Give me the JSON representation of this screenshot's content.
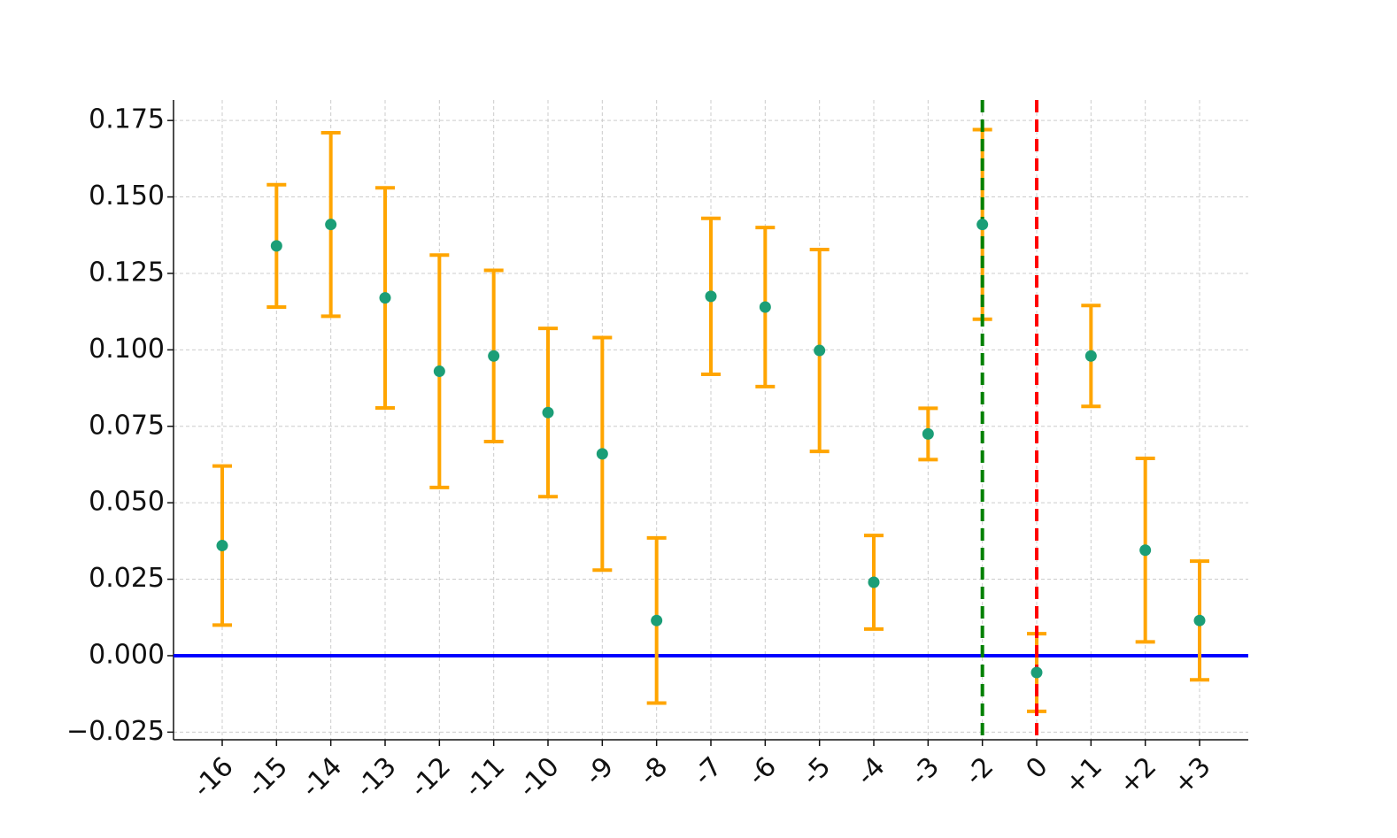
{
  "chart_data": {
    "type": "errorbar",
    "categories": [
      "-16",
      "-15",
      "-14",
      "-13",
      "-12",
      "-11",
      "-10",
      "-9",
      "-8",
      "-7",
      "-6",
      "-5",
      "-4",
      "-3",
      "-2",
      "0",
      "+1",
      "+2",
      "+3"
    ],
    "values": [
      0.036,
      0.134,
      0.141,
      0.117,
      0.093,
      0.098,
      0.0795,
      0.066,
      0.0115,
      0.1175,
      0.114,
      0.0998,
      0.024,
      0.0725,
      0.141,
      -0.0055,
      0.098,
      0.0345,
      0.0115
    ],
    "errors": [
      0.026,
      0.02,
      0.03,
      0.036,
      0.038,
      0.028,
      0.0275,
      0.038,
      0.027,
      0.0255,
      0.026,
      0.033,
      0.0153,
      0.0084,
      0.031,
      0.0127,
      0.0165,
      0.03,
      0.0194
    ],
    "color": "#1b9e77",
    "error_color": "#ffa500",
    "ylim": [
      -0.0275,
      0.1817
    ],
    "yticks": [
      {
        "value": -0.025,
        "label": "−0.025"
      },
      {
        "value": 0,
        "label": "0.000"
      },
      {
        "value": 0.025,
        "label": "0.025"
      },
      {
        "value": 0.05,
        "label": "0.050"
      },
      {
        "value": 0.075,
        "label": "0.075"
      },
      {
        "value": 0.1,
        "label": "0.100"
      },
      {
        "value": 0.125,
        "label": "0.125"
      },
      {
        "value": 0.15,
        "label": "0.150"
      },
      {
        "value": 0.175,
        "label": "0.175"
      }
    ],
    "grid": true,
    "hlines": [
      {
        "y": 0,
        "color": "#0000ff"
      }
    ],
    "vlines": [
      {
        "at": "-2",
        "color": "#008000",
        "style": "dashed"
      },
      {
        "at": "0",
        "color": "#ff0000",
        "style": "dashed"
      }
    ]
  }
}
